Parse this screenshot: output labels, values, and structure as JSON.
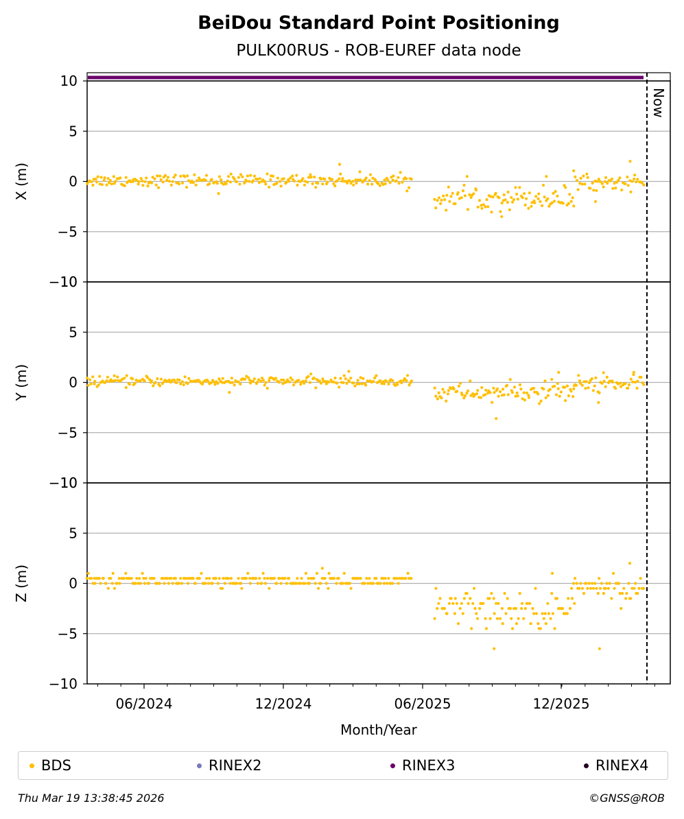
{
  "chart_data": {
    "type": "scatter",
    "title": "BeiDou Standard Point Positioning",
    "subtitle": "PULK00RUS - ROB-EUREF data node",
    "xlabel": "Month/Year",
    "x_ticks": [
      "06/2024",
      "12/2024",
      "06/2025",
      "12/2025"
    ],
    "now_label": "Now",
    "grid": true,
    "legend_placement": "bottom",
    "panels": [
      {
        "ylabel": "X (m)",
        "ylim": [
          -10,
          10
        ],
        "yticks": [
          "10",
          "5",
          "0",
          "−5",
          "−10"
        ],
        "segments": [
          {
            "from": "2024-03",
            "to": "2025-05",
            "center": 0.1,
            "spread": 0.5,
            "min": -1.2,
            "max": 1.7
          },
          {
            "from": "2025-06",
            "to": "2025-12",
            "center": -1.6,
            "spread": 1.0,
            "min": -3.5,
            "max": 0.5
          },
          {
            "from": "2025-12",
            "to": "2026-03",
            "center": -0.1,
            "spread": 0.6,
            "min": -2.0,
            "max": 2.0
          }
        ]
      },
      {
        "ylabel": "Y (m)",
        "ylim": [
          -10,
          10
        ],
        "yticks": [
          "10",
          "5",
          "0",
          "−5",
          "−10"
        ],
        "segments": [
          {
            "from": "2024-03",
            "to": "2025-05",
            "center": 0.1,
            "spread": 0.4,
            "min": -1.0,
            "max": 1.1
          },
          {
            "from": "2025-06",
            "to": "2025-12",
            "center": -1.0,
            "spread": 0.8,
            "min": -3.6,
            "max": 1.0
          },
          {
            "from": "2025-12",
            "to": "2026-03",
            "center": -0.1,
            "spread": 0.7,
            "min": -2.0,
            "max": 1.0
          }
        ]
      },
      {
        "ylabel": "Z (m)",
        "ylim": [
          -10,
          10
        ],
        "yticks": [
          "10",
          "5",
          "0",
          "−5",
          "−10"
        ],
        "segments": [
          {
            "from": "2024-03",
            "to": "2025-05",
            "center": 0.3,
            "spread": 0.5,
            "min": -0.5,
            "max": 1.5
          },
          {
            "from": "2025-06",
            "to": "2025-12",
            "center": -2.5,
            "spread": 1.6,
            "min": -6.5,
            "max": 1.0
          },
          {
            "from": "2025-12",
            "to": "2026-03",
            "center": -0.4,
            "spread": 1.0,
            "min": -6.5,
            "max": 2.0
          }
        ]
      }
    ],
    "legend": [
      {
        "label": "BDS",
        "color": "#FFBF00"
      },
      {
        "label": "RINEX2",
        "color": "#7B78BC"
      },
      {
        "label": "RINEX3",
        "color": "#6A006A"
      },
      {
        "label": "RINEX4",
        "color": "#220022"
      }
    ],
    "rinex3_band_color": "#6A006A",
    "bds_color": "#FFBF00"
  },
  "footer": {
    "timestamp": "Thu Mar 19 13:38:45 2026",
    "copyright": "©GNSS@ROB"
  }
}
